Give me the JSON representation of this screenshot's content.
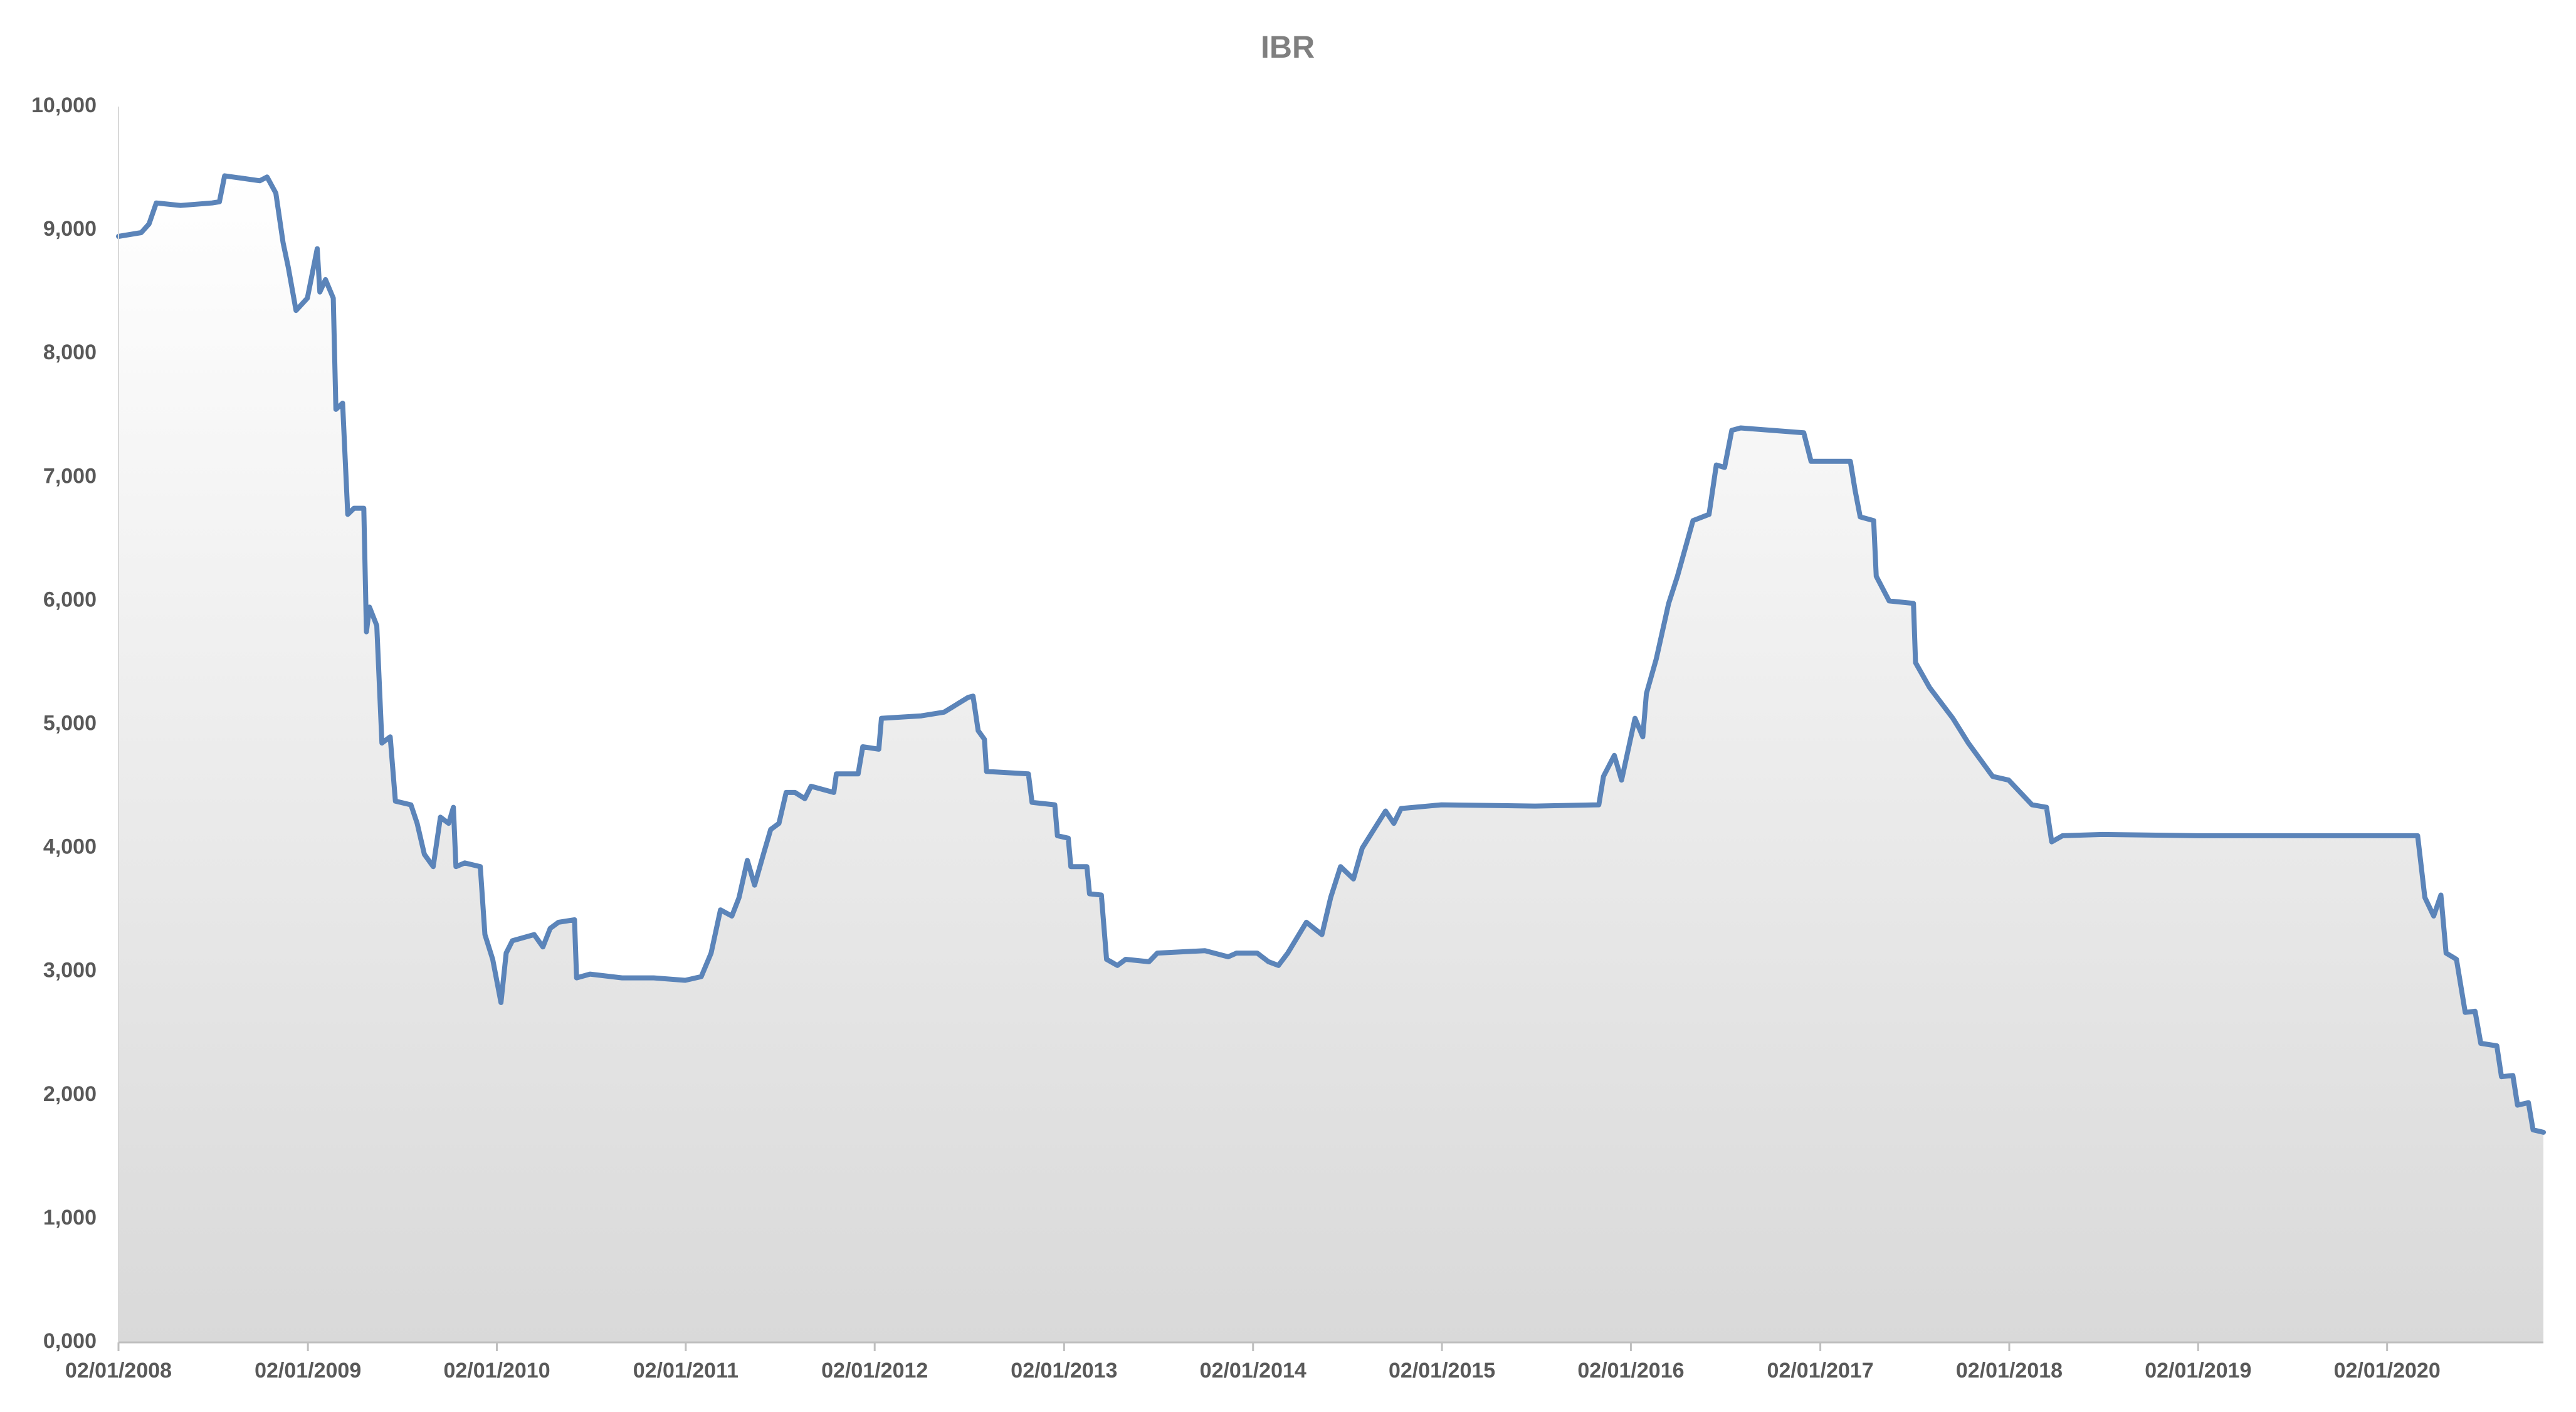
{
  "chart_data": {
    "type": "area",
    "title": "IBR",
    "color": "#5b84b9",
    "fill_top": "#ffffff",
    "fill_bottom": "#d9d9d9",
    "x": [
      "02/01/2008",
      "15/02/2008",
      "01/03/2008",
      "15/03/2008",
      "01/05/2008",
      "01/07/2008",
      "15/07/2008",
      "25/07/2008",
      "01/10/2008",
      "15/10/2008",
      "01/11/2008",
      "15/11/2008",
      "25/11/2008",
      "10/12/2008",
      "01/01/2009",
      "20/01/2009",
      "25/01/2009",
      "05/02/2009",
      "20/02/2009",
      "25/02/2009",
      "10/03/2009",
      "20/03/2009",
      "01/04/2009",
      "20/04/2009",
      "25/04/2009",
      "01/05/2009",
      "15/05/2009",
      "25/05/2009",
      "10/06/2009",
      "20/06/2009",
      "20/07/2009",
      "01/08/2009",
      "15/08/2009",
      "01/09/2009",
      "15/09/2009",
      "01/10/2009",
      "10/10/2009",
      "15/10/2009",
      "01/11/2009",
      "01/12/2009",
      "10/12/2009",
      "25/12/2009",
      "10/01/2010",
      "20/01/2010",
      "01/02/2010",
      "15/03/2010",
      "01/04/2010",
      "15/04/2010",
      "01/05/2010",
      "01/06/2010",
      "05/06/2010",
      "01/07/2010",
      "01/09/2010",
      "01/11/2010",
      "01/01/2011",
      "01/02/2011",
      "20/02/2011",
      "10/03/2011",
      "01/04/2011",
      "15/04/2011",
      "01/05/2011",
      "15/05/2011",
      "01/06/2011",
      "15/06/2011",
      "01/07/2011",
      "15/07/2011",
      "01/08/2011",
      "20/08/2011",
      "01/09/2011",
      "15/10/2011",
      "20/10/2011",
      "01/12/2011",
      "10/12/2011",
      "10/01/2012",
      "15/01/2012",
      "01/04/2012",
      "15/05/2012",
      "01/07/2012",
      "10/07/2012",
      "20/07/2012",
      "01/08/2012",
      "05/08/2012",
      "25/10/2012",
      "01/11/2012",
      "15/12/2012",
      "20/12/2012",
      "10/01/2013",
      "15/01/2013",
      "15/02/2013",
      "20/02/2013",
      "15/03/2013",
      "25/03/2013",
      "15/04/2013",
      "01/05/2013",
      "15/06/2013",
      "01/07/2013",
      "01/10/2013",
      "15/11/2013",
      "01/12/2013",
      "10/01/2014",
      "01/02/2014",
      "20/02/2014",
      "10/03/2014",
      "15/04/2014",
      "15/05/2014",
      "01/06/2014",
      "20/06/2014",
      "15/07/2014",
      "01/08/2014",
      "15/09/2014",
      "01/10/2014",
      "15/10/2014",
      "01/01/2015",
      "01/07/2015",
      "01/11/2015",
      "10/11/2015",
      "01/12/2015",
      "15/12/2015",
      "10/01/2016",
      "25/01/2016",
      "01/02/2016",
      "20/02/2016",
      "15/03/2016",
      "01/04/2016",
      "01/05/2016",
      "01/06/2016",
      "15/06/2016",
      "01/07/2016",
      "15/07/2016",
      "01/08/2016",
      "01/12/2016",
      "15/12/2016",
      "01/03/2017",
      "10/03/2017",
      "20/03/2017",
      "15/04/2017",
      "20/04/2017",
      "15/05/2017",
      "01/07/2017",
      "05/07/2017",
      "01/08/2017",
      "15/09/2017",
      "15/10/2017",
      "01/12/2017",
      "01/01/2018",
      "15/02/2018",
      "15/03/2018",
      "25/03/2018",
      "15/04/2018",
      "01/07/2018",
      "01/01/2019",
      "01/01/2020",
      "01/03/2020",
      "15/03/2020",
      "01/04/2020",
      "15/04/2020",
      "25/04/2020",
      "15/05/2020",
      "01/06/2020",
      "20/06/2020",
      "01/07/2020",
      "01/08/2020",
      "10/08/2020",
      "01/09/2020",
      "10/09/2020",
      "01/10/2020",
      "10/10/2020",
      "30/10/2020"
    ],
    "values": [
      8950,
      8980,
      9050,
      9220,
      9200,
      9220,
      9230,
      9440,
      9400,
      9430,
      9300,
      8900,
      8700,
      8350,
      8450,
      8850,
      8500,
      8600,
      8450,
      7550,
      7600,
      6700,
      6750,
      6750,
      5750,
      5950,
      5800,
      4850,
      4900,
      4380,
      4350,
      4200,
      3950,
      3850,
      4250,
      4200,
      4330,
      3850,
      3880,
      3850,
      3300,
      3100,
      2750,
      3150,
      3250,
      3300,
      3200,
      3350,
      3400,
      3420,
      2950,
      2980,
      2950,
      2950,
      2930,
      2960,
      3150,
      3500,
      3450,
      3600,
      3900,
      3700,
      3950,
      4150,
      4200,
      4450,
      4450,
      4400,
      4500,
      4450,
      4600,
      4600,
      4820,
      4800,
      5050,
      5070,
      5100,
      5220,
      5230,
      4950,
      4880,
      4620,
      4600,
      4370,
      4350,
      4100,
      4080,
      3850,
      3850,
      3630,
      3620,
      3100,
      3050,
      3100,
      3080,
      3150,
      3170,
      3120,
      3150,
      3150,
      3080,
      3050,
      3150,
      3400,
      3300,
      3600,
      3850,
      3750,
      4000,
      4300,
      4200,
      4320,
      4350,
      4340,
      4350,
      4580,
      4750,
      4550,
      5050,
      4900,
      5250,
      5530,
      5980,
      6200,
      6650,
      6700,
      7100,
      7080,
      7380,
      7400,
      7360,
      7130,
      7130,
      6900,
      6680,
      6650,
      6200,
      6000,
      5980,
      5500,
      5300,
      5050,
      4850,
      4580,
      4550,
      4350,
      4330,
      4050,
      4100,
      4110,
      4100,
      4100,
      4100,
      3600,
      3450,
      3620,
      3150,
      3100,
      2670,
      2680,
      2420,
      2400,
      2150,
      2160,
      1920,
      1940,
      1720,
      1700
    ],
    "xlim": [
      "02/01/2008",
      "30/10/2020"
    ],
    "xticks": [
      "02/01/2008",
      "02/01/2009",
      "02/01/2010",
      "02/01/2011",
      "02/01/2012",
      "02/01/2013",
      "02/01/2014",
      "02/01/2015",
      "02/01/2016",
      "02/01/2017",
      "02/01/2018",
      "02/01/2019",
      "02/01/2020"
    ],
    "ylim": [
      0,
      10000
    ],
    "yticks": [
      {
        "value": 0,
        "label": "0,000"
      },
      {
        "value": 1000,
        "label": "1,000"
      },
      {
        "value": 2000,
        "label": "2,000"
      },
      {
        "value": 3000,
        "label": "3,000"
      },
      {
        "value": 4000,
        "label": "4,000"
      },
      {
        "value": 5000,
        "label": "5,000"
      },
      {
        "value": 6000,
        "label": "6,000"
      },
      {
        "value": 7000,
        "label": "7,000"
      },
      {
        "value": 8000,
        "label": "8,000"
      },
      {
        "value": 9000,
        "label": "9,000"
      },
      {
        "value": 10000,
        "label": "10,000"
      }
    ],
    "grid": false
  }
}
